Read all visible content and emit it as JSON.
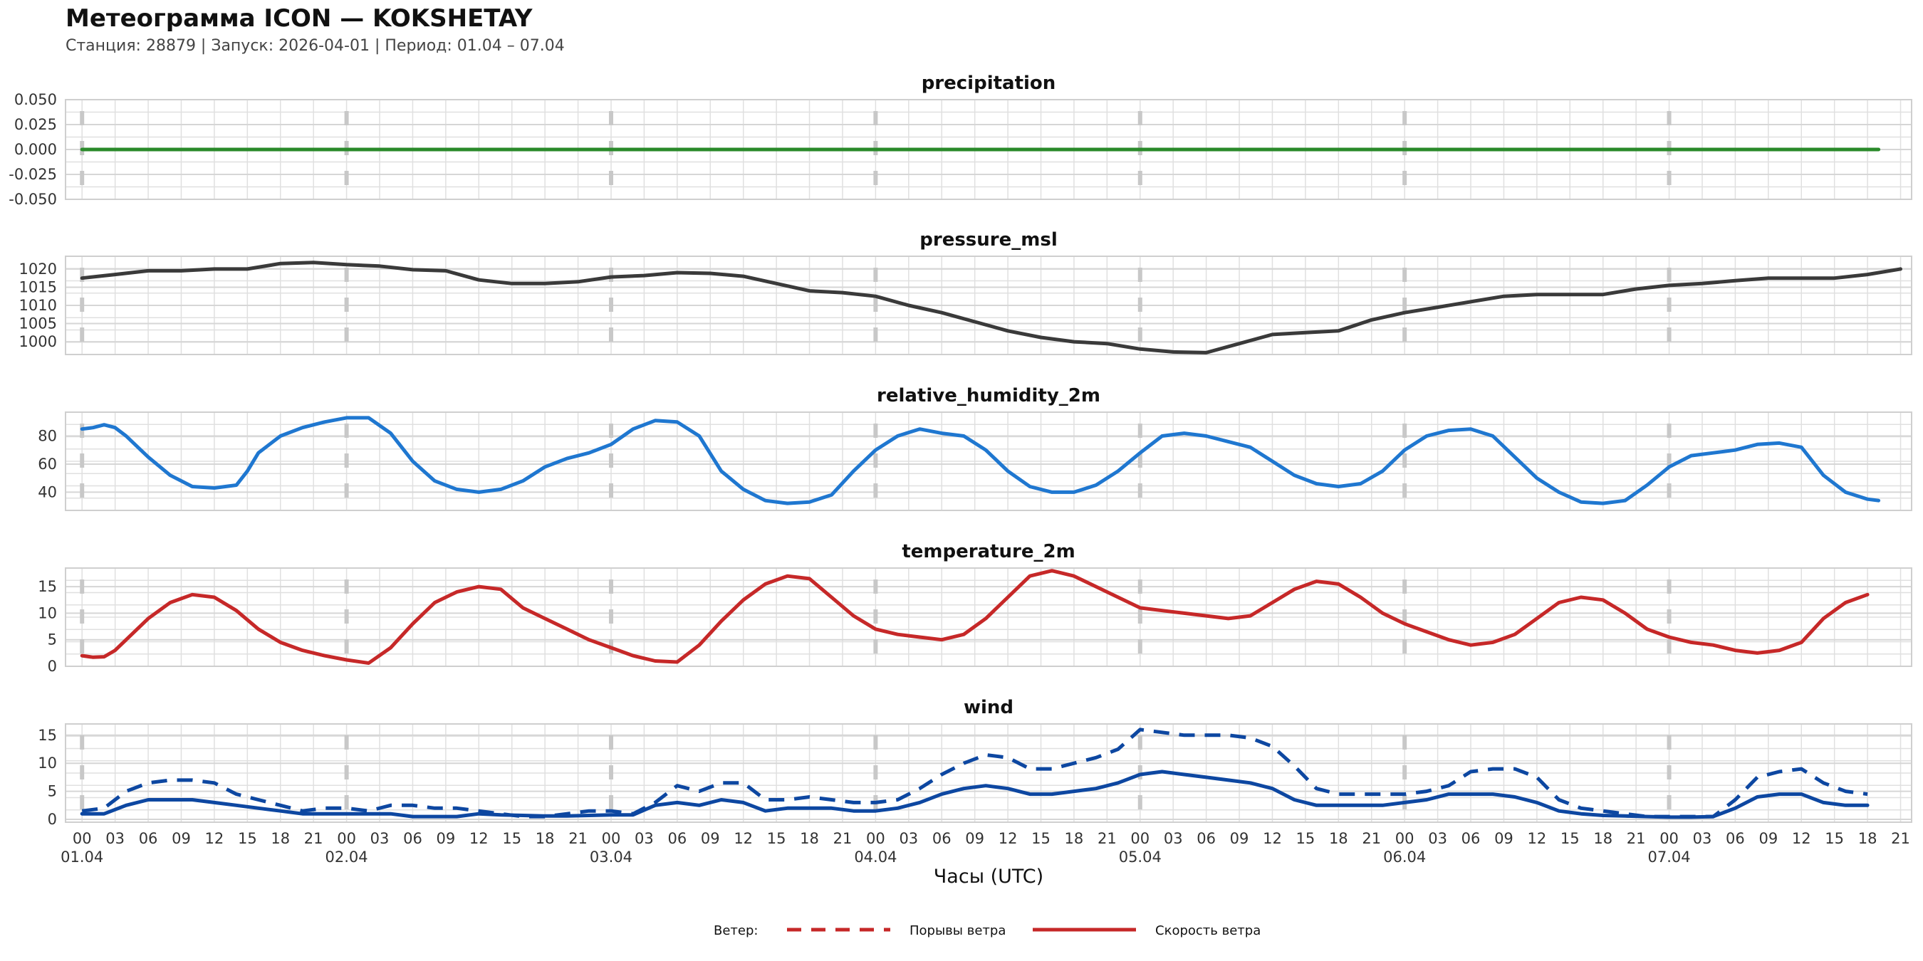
{
  "header": {
    "title": "Метеограмма ICON — KOKSHETAY",
    "subtitle": "Станция: 28879  | Запуск: 2026-04-01  | Период: 01.04 – 07.04"
  },
  "colors": {
    "precipitation": "#2a8a2a",
    "pressure": "#3a3a3a",
    "humidity": "#1f77d0",
    "temperature": "#c62828",
    "wind": "#0d47a1",
    "legend_line": "#c62828",
    "grid": "#e0e0e0",
    "day_marker": "#c8c8c8"
  },
  "chart_data": [
    {
      "type": "line",
      "title": "precipitation",
      "ylim": [
        -0.05,
        0.05
      ],
      "yticks": [
        "0.050",
        "0.025",
        "0.000",
        "-0.025",
        "-0.050"
      ],
      "yticks_values": [
        0.05,
        0.025,
        0.0,
        -0.025,
        -0.05
      ],
      "series": [
        {
          "name": "precipitation",
          "x": [
            0,
            163
          ],
          "values": [
            0,
            0
          ]
        }
      ]
    },
    {
      "type": "line",
      "title": "pressure_msl",
      "ylim": [
        996.5,
        1023.5
      ],
      "yticks": [
        "1020",
        "1015",
        "1010",
        "1005",
        "1000"
      ],
      "yticks_values": [
        1020,
        1015,
        1010,
        1005,
        1000
      ],
      "series": [
        {
          "name": "pressure_msl",
          "x": [
            0,
            3,
            6,
            9,
            12,
            15,
            18,
            21,
            24,
            27,
            30,
            33,
            36,
            39,
            42,
            45,
            48,
            51,
            54,
            57,
            60,
            63,
            66,
            69,
            72,
            75,
            78,
            81,
            84,
            87,
            90,
            93,
            96,
            99,
            102,
            105,
            108,
            111,
            114,
            117,
            120,
            123,
            126,
            129,
            132,
            135,
            138,
            141,
            144,
            147,
            150,
            153,
            156,
            159,
            162,
            165
          ],
          "values": [
            1017.5,
            1018.5,
            1019.5,
            1019.5,
            1020,
            1020,
            1021.5,
            1021.8,
            1021.2,
            1020.8,
            1019.8,
            1019.5,
            1017,
            1016,
            1016,
            1016.5,
            1017.8,
            1018.2,
            1019,
            1018.8,
            1018,
            1016,
            1014,
            1013.5,
            1012.5,
            1010,
            1008,
            1005.5,
            1003,
            1001.2,
            1000,
            999.5,
            998,
            997.2,
            997,
            999.5,
            1002,
            1002.5,
            1003,
            1006,
            1008,
            1009.5,
            1011,
            1012.5,
            1013,
            1013,
            1013,
            1014.5,
            1015.5,
            1016,
            1016.8,
            1017.5,
            1017.5,
            1017.5,
            1018.5,
            1020
          ]
        }
      ]
    },
    {
      "type": "line",
      "title": "relative_humidity_2m",
      "ylim": [
        27,
        97
      ],
      "yticks": [
        "80",
        "60",
        "40"
      ],
      "yticks_values": [
        80,
        60,
        40
      ],
      "series": [
        {
          "name": "relative_humidity_2m",
          "x": [
            0,
            1,
            2,
            3,
            4,
            6,
            8,
            10,
            12,
            14,
            15,
            16,
            18,
            20,
            22,
            24,
            26,
            28,
            30,
            32,
            34,
            36,
            38,
            40,
            42,
            44,
            46,
            48,
            50,
            52,
            54,
            56,
            58,
            60,
            62,
            64,
            66,
            68,
            70,
            72,
            74,
            76,
            78,
            80,
            82,
            84,
            86,
            88,
            90,
            92,
            94,
            96,
            98,
            100,
            102,
            104,
            106,
            108,
            110,
            112,
            114,
            116,
            118,
            120,
            122,
            124,
            126,
            128,
            130,
            132,
            134,
            136,
            138,
            140,
            142,
            144,
            146,
            148,
            150,
            152,
            154,
            156,
            158,
            160,
            162,
            163
          ],
          "values": [
            85,
            86,
            88,
            86,
            80,
            65,
            52,
            44,
            43,
            45,
            55,
            68,
            80,
            86,
            90,
            93,
            93,
            82,
            62,
            48,
            42,
            40,
            42,
            48,
            58,
            64,
            68,
            74,
            85,
            91,
            90,
            80,
            55,
            42,
            34,
            32,
            33,
            38,
            55,
            70,
            80,
            85,
            82,
            80,
            70,
            55,
            44,
            40,
            40,
            45,
            55,
            68,
            80,
            82,
            80,
            76,
            72,
            62,
            52,
            46,
            44,
            46,
            55,
            70,
            80,
            84,
            85,
            80,
            65,
            50,
            40,
            33,
            32,
            34,
            45,
            58,
            66,
            68,
            70,
            74,
            75,
            72,
            52,
            40,
            35,
            34
          ]
        }
      ]
    },
    {
      "type": "line",
      "title": "temperature_2m",
      "ylim": [
        0,
        18.5
      ],
      "yticks": [
        "15",
        "10",
        "5",
        "0"
      ],
      "yticks_values": [
        15,
        10,
        5,
        0
      ],
      "series": [
        {
          "name": "temperature_2m",
          "x": [
            0,
            1,
            2,
            3,
            4,
            6,
            8,
            10,
            12,
            14,
            16,
            18,
            20,
            22,
            24,
            26,
            28,
            30,
            32,
            34,
            36,
            38,
            40,
            42,
            44,
            46,
            48,
            50,
            52,
            54,
            56,
            58,
            60,
            62,
            64,
            66,
            68,
            70,
            72,
            74,
            76,
            78,
            80,
            82,
            84,
            86,
            88,
            90,
            92,
            94,
            96,
            98,
            100,
            102,
            104,
            106,
            108,
            110,
            112,
            114,
            116,
            118,
            120,
            122,
            124,
            126,
            128,
            130,
            132,
            134,
            136,
            138,
            140,
            142,
            144,
            146,
            148,
            150,
            152,
            154,
            156,
            158,
            160,
            162
          ],
          "values": [
            2,
            1.7,
            1.8,
            3,
            5,
            9,
            12,
            13.5,
            13,
            10.5,
            7,
            4.5,
            3,
            2,
            1.2,
            0.6,
            3.5,
            8,
            12,
            14,
            15,
            14.5,
            11,
            9,
            7,
            5,
            3.5,
            2,
            1,
            0.8,
            4,
            8.5,
            12.5,
            15.5,
            17,
            16.5,
            13,
            9.5,
            7,
            6,
            5.5,
            5,
            6,
            9,
            13,
            17,
            18,
            17,
            15,
            13,
            11,
            10.5,
            10,
            9.5,
            9,
            9.5,
            12,
            14.5,
            16,
            15.5,
            13,
            10,
            8,
            6.5,
            5,
            4,
            4.5,
            6,
            9,
            12,
            13,
            12.5,
            10,
            7,
            5.5,
            4.5,
            4,
            3,
            2.5,
            3,
            4.5,
            9,
            12,
            13.5
          ]
        }
      ]
    },
    {
      "type": "line",
      "title": "wind",
      "ylim": [
        -0.5,
        17
      ],
      "yticks": [
        "15",
        "10",
        "5",
        "0"
      ],
      "yticks_values": [
        15,
        10,
        5,
        0
      ],
      "series": [
        {
          "name": "Порывы ветра",
          "style": "dashed",
          "x": [
            0,
            2,
            4,
            6,
            8,
            10,
            12,
            14,
            16,
            18,
            20,
            22,
            24,
            26,
            28,
            30,
            32,
            34,
            36,
            38,
            40,
            42,
            44,
            46,
            48,
            50,
            52,
            54,
            56,
            58,
            60,
            62,
            64,
            66,
            68,
            70,
            72,
            74,
            76,
            78,
            80,
            82,
            84,
            86,
            88,
            90,
            92,
            94,
            96,
            98,
            100,
            102,
            104,
            106,
            108,
            110,
            112,
            114,
            116,
            118,
            120,
            122,
            124,
            126,
            128,
            130,
            132,
            134,
            136,
            138,
            140,
            142,
            144,
            146,
            148,
            150,
            152,
            154,
            156,
            158,
            160,
            162
          ],
          "values": [
            1.5,
            2,
            5,
            6.5,
            7,
            7,
            6.5,
            4.5,
            3.5,
            2.5,
            1.5,
            2,
            2,
            1.5,
            2.5,
            2.5,
            2,
            2,
            1.5,
            1,
            0.5,
            0.5,
            1,
            1.5,
            1.5,
            1,
            3,
            6,
            5,
            6.5,
            6.5,
            3.5,
            3.5,
            4,
            3.5,
            3,
            3,
            3.5,
            5.5,
            8,
            10,
            11.5,
            11,
            9,
            9,
            10,
            11,
            12.5,
            16,
            15.5,
            15,
            15,
            15,
            14.5,
            13,
            9.5,
            5.5,
            4.5,
            4.5,
            4.5,
            4.5,
            5,
            6,
            8.5,
            9,
            9,
            7.5,
            3.5,
            2,
            1.5,
            1,
            0.5,
            0.5,
            0.5,
            0.5,
            3.5,
            7.5,
            8.5,
            9,
            6.5,
            5,
            4.5
          ]
        },
        {
          "name": "Скорость ветра",
          "style": "solid",
          "x": [
            0,
            2,
            4,
            6,
            8,
            10,
            12,
            14,
            16,
            18,
            20,
            22,
            24,
            26,
            28,
            30,
            32,
            34,
            36,
            38,
            40,
            42,
            44,
            46,
            48,
            50,
            52,
            54,
            56,
            58,
            60,
            62,
            64,
            66,
            68,
            70,
            72,
            74,
            76,
            78,
            80,
            82,
            84,
            86,
            88,
            90,
            92,
            94,
            96,
            98,
            100,
            102,
            104,
            106,
            108,
            110,
            112,
            114,
            116,
            118,
            120,
            122,
            124,
            126,
            128,
            130,
            132,
            134,
            136,
            138,
            140,
            142,
            144,
            146,
            148,
            150,
            152,
            154,
            156,
            158,
            160,
            162
          ],
          "values": [
            1,
            1,
            2.5,
            3.5,
            3.5,
            3.5,
            3,
            2.5,
            2,
            1.5,
            1,
            1,
            1,
            1,
            1,
            0.5,
            0.5,
            0.5,
            1,
            0.8,
            0.7,
            0.6,
            0.6,
            0.7,
            0.8,
            0.8,
            2.5,
            3,
            2.5,
            3.5,
            3,
            1.5,
            2,
            2,
            2,
            1.5,
            1.5,
            2,
            3,
            4.5,
            5.5,
            6,
            5.5,
            4.5,
            4.5,
            5,
            5.5,
            6.5,
            8,
            8.5,
            8,
            7.5,
            7,
            6.5,
            5.5,
            3.5,
            2.5,
            2.5,
            2.5,
            2.5,
            3,
            3.5,
            4.5,
            4.5,
            4.5,
            4,
            3,
            1.5,
            1,
            0.7,
            0.6,
            0.5,
            0.4,
            0.4,
            0.5,
            2,
            4,
            4.5,
            4.5,
            3,
            2.5,
            2.5
          ]
        }
      ]
    }
  ],
  "x_axis": {
    "label": "Часы (UTC)",
    "hour_labels": [
      "00",
      "03",
      "06",
      "09",
      "12",
      "15",
      "18",
      "21",
      "00",
      "03",
      "06",
      "09",
      "12",
      "15",
      "18",
      "21",
      "00",
      "03",
      "06",
      "09",
      "12",
      "15",
      "18",
      "21",
      "00",
      "03",
      "06",
      "09",
      "12",
      "15",
      "18",
      "21",
      "00",
      "03",
      "06",
      "09",
      "12",
      "15",
      "18",
      "21",
      "00",
      "03",
      "06",
      "09",
      "12",
      "15",
      "18",
      "21",
      "00",
      "03",
      "06",
      "09",
      "12",
      "15",
      "18",
      "21"
    ],
    "date_labels": [
      "01.04",
      "02.04",
      "03.04",
      "04.04",
      "05.04",
      "06.04",
      "07.04"
    ],
    "x_range": [
      -1.5,
      166
    ]
  },
  "legend": {
    "title": "Ветер:",
    "items": [
      {
        "label": "Порывы ветра",
        "style": "dashed"
      },
      {
        "label": "Скорость ветра",
        "style": "solid"
      }
    ]
  }
}
